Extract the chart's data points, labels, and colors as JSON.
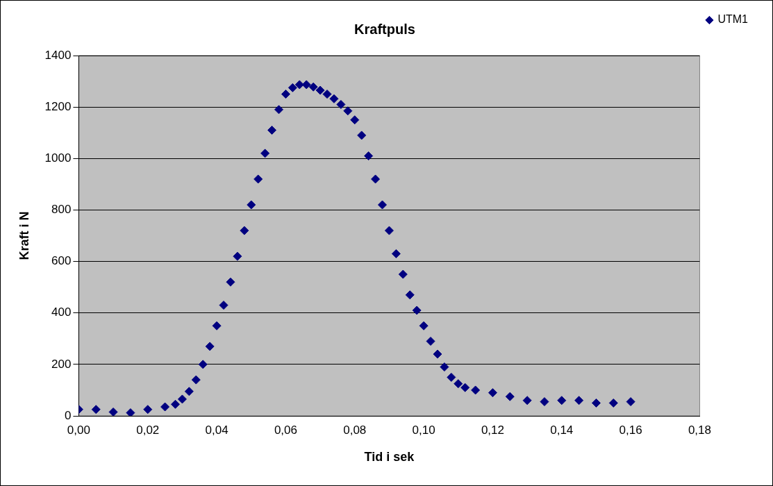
{
  "chart_data": {
    "type": "scatter",
    "title": "Kraftpuls",
    "xlabel": "Tid i sek",
    "ylabel": "Kraft i N",
    "xlim": [
      0,
      0.18
    ],
    "xticks": [
      {
        "value": 0,
        "label": "0,00"
      },
      {
        "value": 0.02,
        "label": "0,02"
      },
      {
        "value": 0.04,
        "label": "0,04"
      },
      {
        "value": 0.06,
        "label": "0,06"
      },
      {
        "value": 0.08,
        "label": "0,08"
      },
      {
        "value": 0.1,
        "label": "0,10"
      },
      {
        "value": 0.12,
        "label": "0,12"
      },
      {
        "value": 0.14,
        "label": "0,14"
      },
      {
        "value": 0.16,
        "label": "0,16"
      },
      {
        "value": 0.18,
        "label": "0,18"
      }
    ],
    "ylim": [
      0,
      1400
    ],
    "yticks": [
      0,
      200,
      400,
      600,
      800,
      1000,
      1200,
      1400
    ],
    "grid": "y",
    "legend": "top right",
    "marker": "diamond",
    "series": [
      {
        "name": "UTM1",
        "color": "#000080",
        "x": [
          0,
          0.005,
          0.01,
          0.015,
          0.02,
          0.025,
          0.028,
          0.03,
          0.032,
          0.034,
          0.036,
          0.038,
          0.04,
          0.042,
          0.044,
          0.046,
          0.048,
          0.05,
          0.052,
          0.054,
          0.056,
          0.058,
          0.06,
          0.062,
          0.064,
          0.066,
          0.068,
          0.07,
          0.072,
          0.074,
          0.076,
          0.078,
          0.08,
          0.082,
          0.084,
          0.086,
          0.088,
          0.09,
          0.092,
          0.094,
          0.096,
          0.098,
          0.1,
          0.102,
          0.104,
          0.106,
          0.108,
          0.11,
          0.112,
          0.115,
          0.12,
          0.125,
          0.13,
          0.135,
          0.14,
          0.145,
          0.15,
          0.155,
          0.16
        ],
        "values": [
          25,
          25,
          15,
          12,
          25,
          35,
          45,
          65,
          95,
          140,
          200,
          270,
          350,
          430,
          520,
          620,
          720,
          820,
          920,
          1020,
          1110,
          1190,
          1250,
          1275,
          1287,
          1287,
          1278,
          1265,
          1250,
          1232,
          1210,
          1185,
          1150,
          1090,
          1010,
          920,
          820,
          720,
          630,
          550,
          470,
          410,
          350,
          290,
          240,
          190,
          150,
          125,
          110,
          100,
          90,
          75,
          60,
          55,
          60,
          60,
          50,
          50,
          55
        ]
      }
    ]
  }
}
